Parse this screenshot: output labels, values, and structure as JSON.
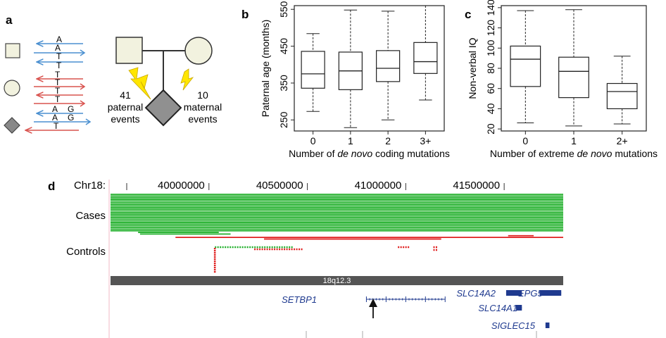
{
  "panels": {
    "a": {
      "letter": "a",
      "strand_rows": [
        {
          "shape": "square",
          "letters": [
            [
              "A"
            ],
            [
              "A",
              "T"
            ]
          ],
          "bottom_letter": "T",
          "color": "#4a8fd0"
        },
        {
          "shape": "circle",
          "letters": [
            [
              "T"
            ],
            [
              "T"
            ]
          ],
          "bottom_letter": "T",
          "color": "#d9534f"
        },
        {
          "shape": "diamond",
          "letters": [
            [
              "A",
              "G"
            ],
            [
              "A",
              "G"
            ]
          ],
          "bottom_letter": "T",
          "color": "#4a8fd0"
        }
      ],
      "paternal_count": "41",
      "paternal_line1": "paternal",
      "paternal_line2": "events",
      "maternal_count": "10",
      "maternal_line1": "maternal",
      "maternal_line2": "events"
    },
    "b": {
      "letter": "b"
    },
    "c": {
      "letter": "c"
    },
    "d": {
      "letter": "d"
    }
  },
  "chart_data": [
    {
      "type": "box",
      "panel": "b",
      "ylabel": "Paternal age (months)",
      "xlabel_prefix": "Number of ",
      "xlabel_italic": "de novo",
      "xlabel_suffix": " coding mutations",
      "categories": [
        "0",
        "1",
        "2",
        "3+"
      ],
      "ylim": [
        220,
        560
      ],
      "yticks": [
        250,
        350,
        450,
        550
      ],
      "boxes": [
        {
          "min": 273,
          "q1": 336,
          "median": 375,
          "q3": 436,
          "max": 484
        },
        {
          "min": 229,
          "q1": 332,
          "median": 383,
          "q3": 434,
          "max": 548
        },
        {
          "min": 250,
          "q1": 354,
          "median": 390,
          "q3": 438,
          "max": 545
        },
        {
          "min": 304,
          "q1": 376,
          "median": 408,
          "q3": 460,
          "max": 560
        }
      ]
    },
    {
      "type": "box",
      "panel": "c",
      "ylabel": "Non-verbal IQ",
      "xlabel_prefix": "Number of extreme ",
      "xlabel_italic": "de novo",
      "xlabel_suffix": " mutations",
      "categories": [
        "0",
        "1",
        "2+"
      ],
      "ylim": [
        18,
        142
      ],
      "yticks": [
        20,
        40,
        60,
        80,
        100,
        120,
        140
      ],
      "boxes": [
        {
          "min": 26,
          "q1": 62,
          "median": 89,
          "q3": 102,
          "max": 137
        },
        {
          "min": 23,
          "q1": 51,
          "median": 77,
          "q3": 91,
          "max": 138
        },
        {
          "min": 25,
          "q1": 40,
          "median": 57,
          "q3": 65,
          "max": 92
        }
      ]
    },
    {
      "type": "genome_track",
      "panel": "d",
      "chrom_label": "Chr18:",
      "ticks": [
        40000000,
        40500000,
        41000000,
        41500000
      ],
      "xlim": [
        39500000,
        41800000
      ],
      "cases_label": "Cases",
      "controls_label": "Controls",
      "band_label": "18q12.3",
      "case_segments": [
        {
          "start": 39500000,
          "end": 41800000,
          "count": 23,
          "color": "#22b02c"
        },
        {
          "start": 39640000,
          "end": 40050000,
          "count": 1,
          "color": "#22b02c"
        },
        {
          "start": 39650000,
          "end": 40110000,
          "count": 1,
          "color": "#22b02c"
        },
        {
          "start": 41520000,
          "end": 41650000,
          "count": 1,
          "color": "#e02020"
        },
        {
          "start": 39830000,
          "end": 41800000,
          "count": 1,
          "color": "#e02020"
        },
        {
          "start": 40280000,
          "end": 41180000,
          "count": 1,
          "color": "#e02020"
        }
      ],
      "genes": [
        {
          "name": "SETBP1",
          "start": 40800000,
          "end": 41200000
        },
        {
          "name": "SLC14A2",
          "start": 41510000,
          "end": 41590000
        },
        {
          "name": "EPG5",
          "start": 41680000,
          "end": 41790000
        },
        {
          "name": "SLC14A1",
          "start": 41560000,
          "end": 41590000
        },
        {
          "name": "SIGLEC15",
          "start": 41710000,
          "end": 41730000
        }
      ]
    }
  ]
}
